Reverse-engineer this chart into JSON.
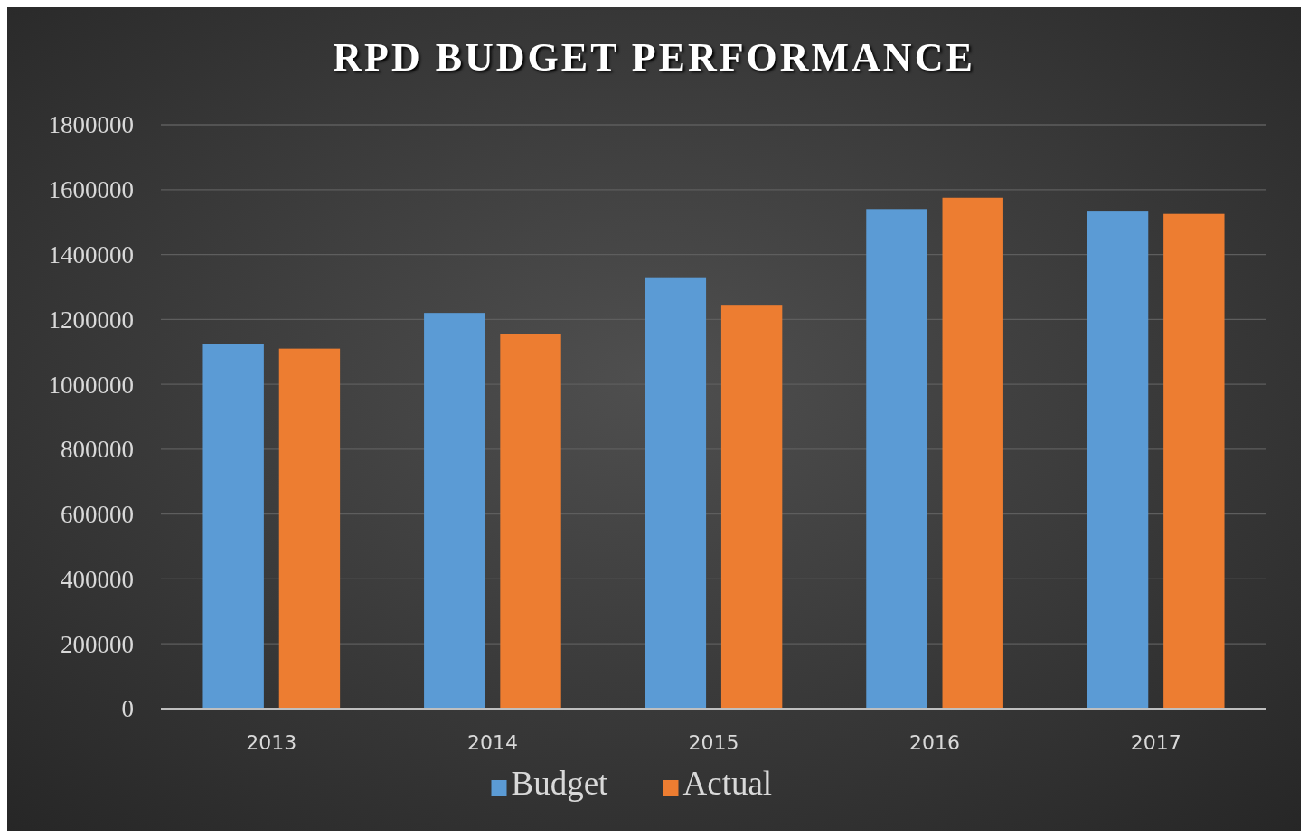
{
  "chart_data": {
    "type": "bar",
    "title": "RPD BUDGET PERFORMANCE",
    "categories": [
      "2013",
      "2014",
      "2015",
      "2016",
      "2017"
    ],
    "series": [
      {
        "name": "Budget",
        "color": "#5b9bd5",
        "values": [
          1125000,
          1220000,
          1330000,
          1540000,
          1535000
        ]
      },
      {
        "name": "Actual",
        "color": "#ed7d31",
        "values": [
          1110000,
          1155000,
          1245000,
          1575000,
          1525000
        ]
      }
    ],
    "ylim": [
      0,
      1800000
    ],
    "yticks": [
      0,
      200000,
      400000,
      600000,
      800000,
      1000000,
      1200000,
      1400000,
      1600000,
      1800000
    ],
    "grid": "y",
    "legend": "bottom"
  }
}
